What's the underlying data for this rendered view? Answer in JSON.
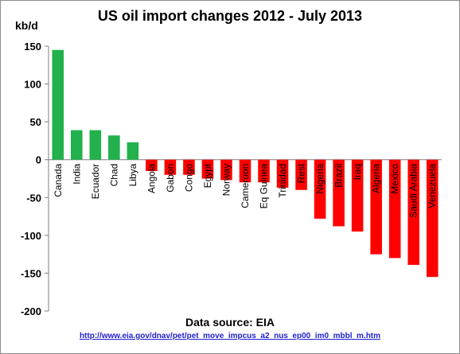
{
  "chart_data": {
    "type": "bar",
    "title": "US oil import changes 2012 - July 2013",
    "ylabel": "kb/d",
    "xlabel": "",
    "ylim": [
      -200,
      150
    ],
    "yticks": [
      150,
      100,
      50,
      0,
      -50,
      -100,
      -150,
      -200
    ],
    "grid": false,
    "legend": "none",
    "categories": [
      "Canada",
      "India",
      "Ecuador",
      "Chad",
      "Libya",
      "Angola",
      "Gabon",
      "Congo",
      "Egypt",
      "Norway",
      "Cameroon",
      "Eq Guinea",
      "Trinidad",
      "Rest",
      "Nigeria",
      "Brazil",
      "Iraq",
      "Algeria",
      "Mexico",
      "Saudi Arabia",
      "Venezuela"
    ],
    "values": [
      145,
      39,
      39,
      32,
      23,
      -15,
      -20,
      -20,
      -25,
      -27,
      -30,
      -30,
      -37,
      -40,
      -78,
      -88,
      -95,
      -125,
      -130,
      -139,
      -155
    ],
    "colors": {
      "positive": "#22b14c",
      "negative": "#ff0000"
    }
  },
  "footer": {
    "source": "Data source: EIA",
    "url": "http://www.eia.gov/dnav/pet/pet_move_impcus_a2_nus_ep00_im0_mbbl_m.htm"
  }
}
